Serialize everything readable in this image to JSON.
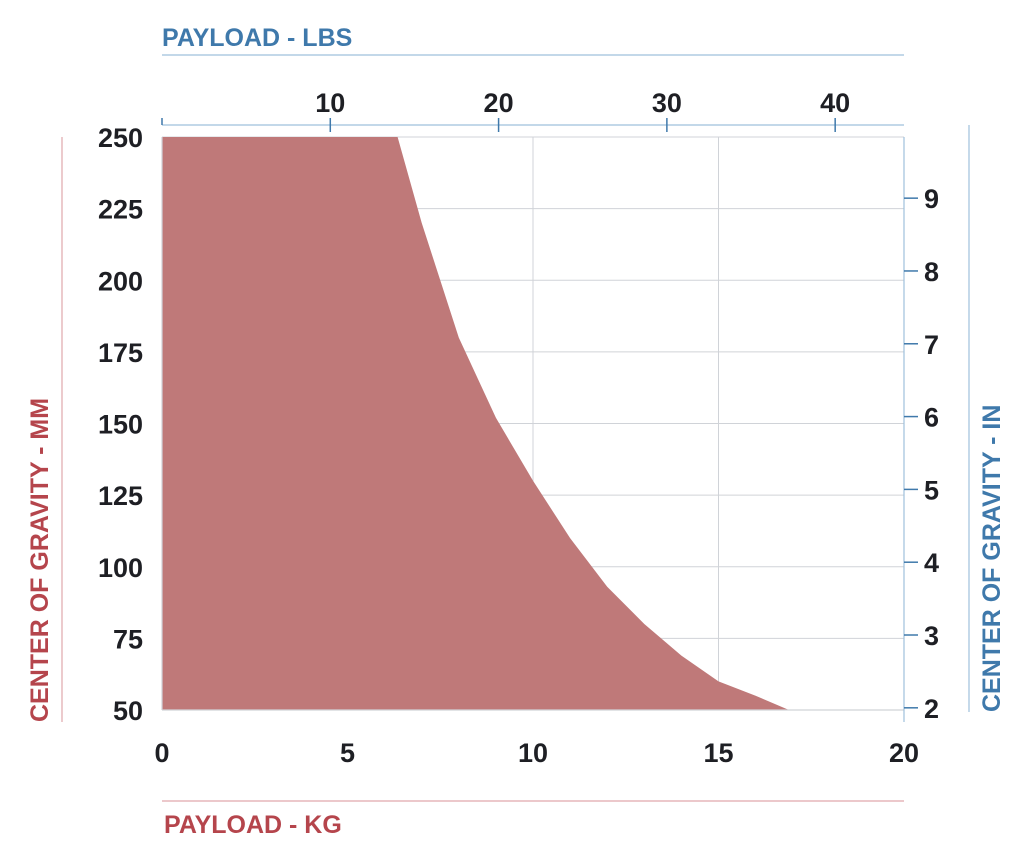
{
  "colors": {
    "area_fill": "#bf7979",
    "kg_accent": "#b5454c",
    "lbs_accent": "#3f79ab",
    "mm_accent": "#b5454c",
    "in_accent": "#3f79ab",
    "grid": "#d0d3d8",
    "tick_text": "#1e1f24"
  },
  "chart_data": {
    "type": "area",
    "x": [
      0,
      6.35,
      7,
      8,
      9,
      10,
      11,
      12,
      13,
      14,
      15,
      16,
      16.9
    ],
    "series": [
      {
        "values": [
          250,
          250,
          220,
          180,
          152,
          130,
          110,
          93,
          80,
          69,
          60,
          55,
          50
        ]
      }
    ],
    "axes": {
      "bottom": {
        "title": "PAYLOAD - KG",
        "range": [
          0,
          20
        ],
        "ticks": [
          0,
          5,
          10,
          15,
          20
        ],
        "tick_labels": [
          "0",
          "5",
          "10",
          "15",
          "20"
        ]
      },
      "top": {
        "title": "PAYLOAD - LBS",
        "range": [
          0,
          44.09
        ],
        "ticks": [
          10,
          20,
          30,
          40
        ],
        "tick_labels": [
          "10",
          "20",
          "30",
          "40"
        ]
      },
      "left": {
        "title": "CENTER OF GRAVITY - MM",
        "range": [
          50,
          250
        ],
        "ticks": [
          50,
          75,
          100,
          125,
          150,
          175,
          200,
          225,
          250
        ],
        "tick_labels": [
          "50",
          "75",
          "100",
          "125",
          "150",
          "175",
          "200",
          "225",
          "250"
        ]
      },
      "right": {
        "title": "CENTER OF GRAVITY - IN",
        "range": [
          1.97,
          9.84
        ],
        "ticks": [
          2,
          3,
          4,
          5,
          6,
          7,
          8,
          9
        ],
        "tick_labels": [
          "2",
          "3",
          "4",
          "5",
          "6",
          "7",
          "8",
          "9"
        ]
      }
    },
    "grid": true
  }
}
